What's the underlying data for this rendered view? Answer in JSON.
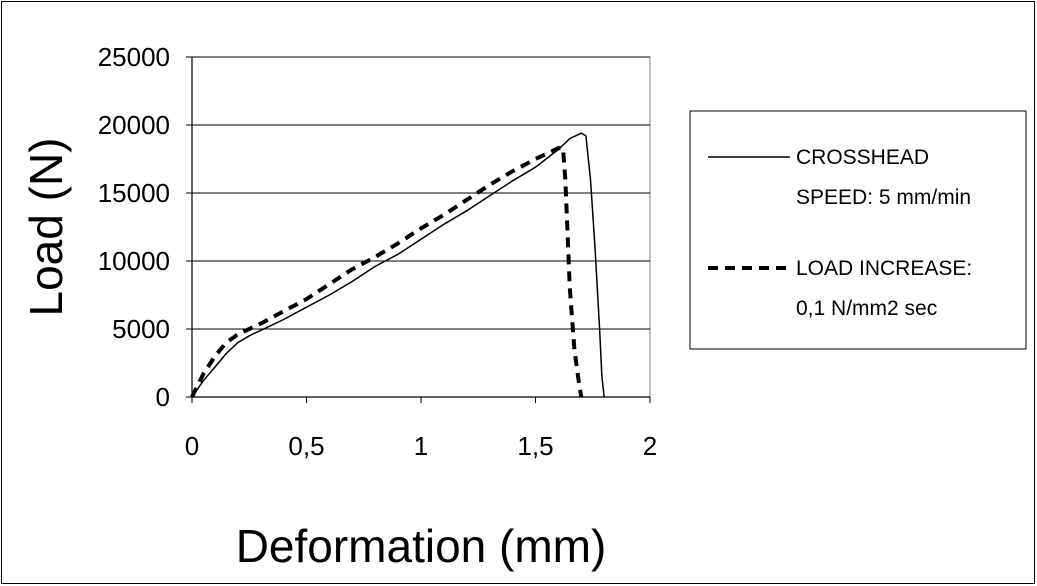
{
  "chart_data": {
    "type": "line",
    "xlabel": "Deformation (mm)",
    "ylabel": "Load (N)",
    "xlim": [
      0,
      2
    ],
    "ylim": [
      0,
      25000
    ],
    "x_ticks": [
      0,
      0.5,
      1,
      1.5,
      2
    ],
    "x_tick_labels": [
      "0",
      "0,5",
      "1",
      "1,5",
      "2"
    ],
    "y_ticks": [
      0,
      5000,
      10000,
      15000,
      20000,
      25000
    ],
    "y_tick_labels": [
      "0",
      "5000",
      "10000",
      "15000",
      "20000",
      "25000"
    ],
    "grid": "horizontal",
    "legend_position": "right",
    "series": [
      {
        "name_lines": [
          "CROSSHEAD",
          "SPEED: 5 mm/min"
        ],
        "style": "solid",
        "points": [
          [
            0,
            0
          ],
          [
            0.05,
            1200
          ],
          [
            0.1,
            2200
          ],
          [
            0.15,
            3200
          ],
          [
            0.2,
            4000
          ],
          [
            0.25,
            4500
          ],
          [
            0.3,
            4900
          ],
          [
            0.4,
            5700
          ],
          [
            0.5,
            6600
          ],
          [
            0.6,
            7500
          ],
          [
            0.7,
            8500
          ],
          [
            0.8,
            9600
          ],
          [
            0.9,
            10500
          ],
          [
            1.0,
            11600
          ],
          [
            1.1,
            12700
          ],
          [
            1.2,
            13700
          ],
          [
            1.3,
            14800
          ],
          [
            1.4,
            15900
          ],
          [
            1.5,
            16900
          ],
          [
            1.6,
            18200
          ],
          [
            1.65,
            19000
          ],
          [
            1.7,
            19400
          ],
          [
            1.72,
            19200
          ],
          [
            1.74,
            16000
          ],
          [
            1.76,
            11000
          ],
          [
            1.78,
            5000
          ],
          [
            1.79,
            1500
          ],
          [
            1.8,
            0
          ]
        ]
      },
      {
        "name_lines": [
          "LOAD INCREASE:",
          "0,1 N/mm2 sec"
        ],
        "style": "dashed",
        "points": [
          [
            0,
            0
          ],
          [
            0.05,
            1700
          ],
          [
            0.1,
            3000
          ],
          [
            0.15,
            4000
          ],
          [
            0.2,
            4600
          ],
          [
            0.3,
            5400
          ],
          [
            0.4,
            6300
          ],
          [
            0.5,
            7200
          ],
          [
            0.6,
            8300
          ],
          [
            0.7,
            9400
          ],
          [
            0.8,
            10300
          ],
          [
            0.9,
            11300
          ],
          [
            1.0,
            12400
          ],
          [
            1.1,
            13400
          ],
          [
            1.2,
            14500
          ],
          [
            1.3,
            15600
          ],
          [
            1.4,
            16600
          ],
          [
            1.5,
            17500
          ],
          [
            1.6,
            18300
          ],
          [
            1.62,
            18300
          ],
          [
            1.63,
            16000
          ],
          [
            1.64,
            12000
          ],
          [
            1.65,
            8000
          ],
          [
            1.67,
            3500
          ],
          [
            1.69,
            1000
          ],
          [
            1.7,
            0
          ]
        ]
      }
    ]
  }
}
